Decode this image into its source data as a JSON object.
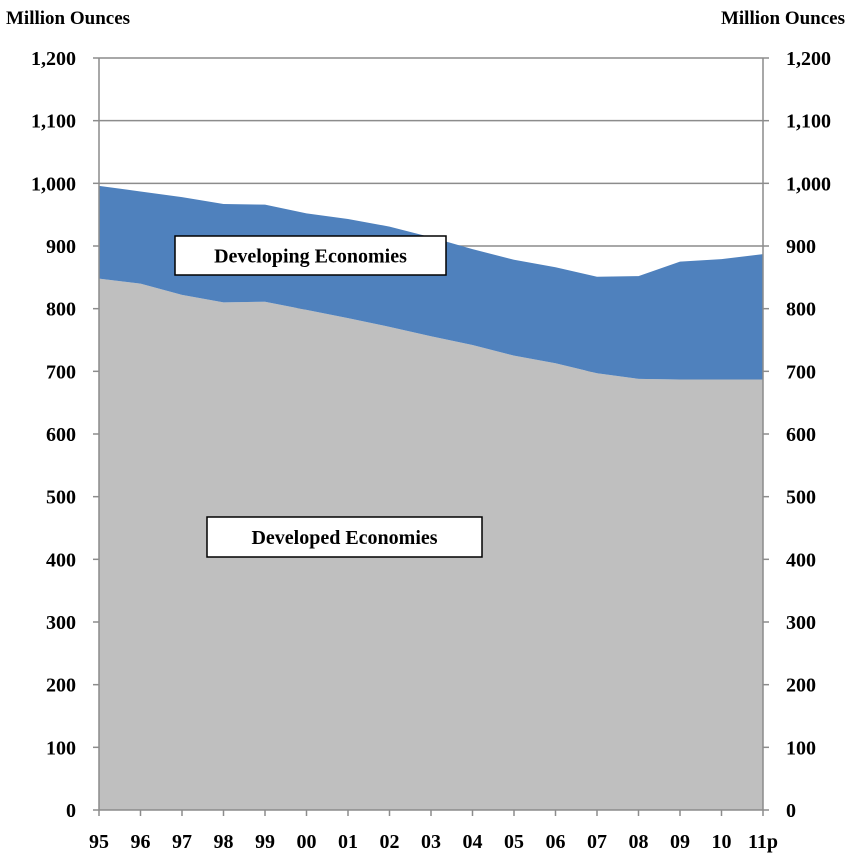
{
  "chart_data": {
    "type": "area",
    "stacked": true,
    "ylabel_left": "Million Ounces",
    "ylabel_right": "Million Ounces",
    "ylim": [
      0,
      1200
    ],
    "yticks": [
      "0",
      "100",
      "200",
      "300",
      "400",
      "500",
      "600",
      "700",
      "800",
      "900",
      "1,000",
      "1,100",
      "1,200"
    ],
    "ytick_values": [
      0,
      100,
      200,
      300,
      400,
      500,
      600,
      700,
      800,
      900,
      1000,
      1100,
      1200
    ],
    "categories": [
      "95",
      "96",
      "97",
      "98",
      "99",
      "00",
      "01",
      "02",
      "03",
      "04",
      "05",
      "06",
      "07",
      "08",
      "09",
      "10",
      "11p"
    ],
    "grid": true,
    "series": [
      {
        "name": "Developed Economies",
        "color": "#bfbfbf",
        "values": [
          848,
          840,
          822,
          810,
          811,
          798,
          785,
          771,
          756,
          742,
          725,
          713,
          697,
          688,
          687,
          687,
          687
        ]
      },
      {
        "name": "Developing Economies",
        "color": "#4f81bd",
        "values": [
          148,
          147,
          156,
          157,
          155,
          154,
          158,
          160,
          158,
          153,
          153,
          153,
          154,
          164,
          188,
          192,
          200
        ]
      }
    ]
  }
}
